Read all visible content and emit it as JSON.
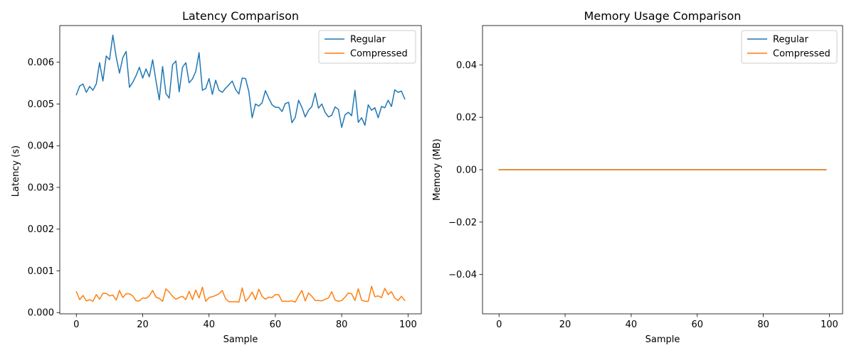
{
  "chart_data": [
    {
      "type": "line",
      "title": "Latency Comparison",
      "xlabel": "Sample",
      "ylabel": "Latency (s)",
      "xlim": [
        -5,
        104
      ],
      "ylim": [
        -3e-05,
        0.00688
      ],
      "xticks": [
        0,
        20,
        40,
        60,
        80,
        100
      ],
      "xtick_labels": [
        "0",
        "20",
        "40",
        "60",
        "80",
        "100"
      ],
      "yticks": [
        0,
        0.001,
        0.002,
        0.003,
        0.004,
        0.005,
        0.006
      ],
      "ytick_labels": [
        "0.000",
        "0.001",
        "0.002",
        "0.003",
        "0.004",
        "0.005",
        "0.006"
      ],
      "legend": "top-right",
      "grid": false,
      "x": [
        0,
        1,
        2,
        3,
        4,
        5,
        6,
        7,
        8,
        9,
        10,
        11,
        12,
        13,
        14,
        15,
        16,
        17,
        18,
        19,
        20,
        21,
        22,
        23,
        24,
        25,
        26,
        27,
        28,
        29,
        30,
        31,
        32,
        33,
        34,
        35,
        36,
        37,
        38,
        39,
        40,
        41,
        42,
        43,
        44,
        45,
        46,
        47,
        48,
        49,
        50,
        51,
        52,
        53,
        54,
        55,
        56,
        57,
        58,
        59,
        60,
        61,
        62,
        63,
        64,
        65,
        66,
        67,
        68,
        69,
        70,
        71,
        72,
        73,
        74,
        75,
        76,
        77,
        78,
        79,
        80,
        81,
        82,
        83,
        84,
        85,
        86,
        87,
        88,
        89,
        90,
        91,
        92,
        93,
        94,
        95,
        96,
        97,
        98,
        99
      ],
      "series": [
        {
          "name": "Regular",
          "color": "#1f77b4",
          "values": [
            0.00522,
            0.00543,
            0.00548,
            0.00528,
            0.00542,
            0.00533,
            0.00548,
            0.00599,
            0.00555,
            0.00615,
            0.00606,
            0.00665,
            0.00613,
            0.00574,
            0.00611,
            0.00626,
            0.0054,
            0.00552,
            0.00568,
            0.00588,
            0.00562,
            0.00584,
            0.00565,
            0.00606,
            0.00556,
            0.0051,
            0.0059,
            0.00525,
            0.00514,
            0.00594,
            0.00603,
            0.00529,
            0.00588,
            0.00599,
            0.00551,
            0.0056,
            0.00578,
            0.00623,
            0.00533,
            0.00537,
            0.00561,
            0.00523,
            0.00557,
            0.00533,
            0.00528,
            0.00538,
            0.00546,
            0.00555,
            0.00535,
            0.00524,
            0.00562,
            0.00561,
            0.0053,
            0.00467,
            0.005,
            0.00495,
            0.00503,
            0.00532,
            0.00514,
            0.00498,
            0.00492,
            0.00492,
            0.00482,
            0.00501,
            0.00504,
            0.00455,
            0.00468,
            0.00509,
            0.00492,
            0.00469,
            0.00485,
            0.00494,
            0.00526,
            0.0049,
            0.005,
            0.0048,
            0.00469,
            0.00473,
            0.00493,
            0.00487,
            0.00444,
            0.00474,
            0.0048,
            0.00472,
            0.00533,
            0.00456,
            0.00467,
            0.00449,
            0.00498,
            0.00485,
            0.00491,
            0.00467,
            0.00494,
            0.00491,
            0.00509,
            0.00494,
            0.00534,
            0.00528,
            0.00531,
            0.00512
          ]
        },
        {
          "name": "Compressed",
          "color": "#ff7f0e",
          "values": [
            0.0005,
            0.00031,
            0.00041,
            0.00028,
            0.00031,
            0.00027,
            0.00043,
            0.00032,
            0.00046,
            0.00046,
            0.0004,
            0.00042,
            0.0003,
            0.00053,
            0.00036,
            0.00045,
            0.00045,
            0.0004,
            0.00028,
            0.00028,
            0.00035,
            0.00034,
            0.0004,
            0.00053,
            0.00037,
            0.00034,
            0.00027,
            0.00057,
            0.00049,
            0.00039,
            0.00032,
            0.00036,
            0.00039,
            0.00031,
            0.00051,
            0.00031,
            0.00054,
            0.00035,
            0.00061,
            0.00027,
            0.00036,
            0.00038,
            0.00041,
            0.00045,
            0.00053,
            0.00033,
            0.00026,
            0.00026,
            0.00026,
            0.00025,
            0.00059,
            0.00027,
            0.00036,
            0.00049,
            0.00031,
            0.00056,
            0.00039,
            0.00032,
            0.00037,
            0.00036,
            0.00043,
            0.00043,
            0.00027,
            0.00027,
            0.00027,
            0.00028,
            0.00025,
            0.0004,
            0.00053,
            0.00028,
            0.00047,
            0.00039,
            0.00029,
            0.00029,
            0.00028,
            0.00032,
            0.00035,
            0.0005,
            0.0003,
            0.00027,
            0.00029,
            0.00037,
            0.00047,
            0.00045,
            0.00029,
            0.00057,
            0.0003,
            0.00027,
            0.00027,
            0.00063,
            0.00038,
            0.0004,
            0.00036,
            0.00058,
            0.00043,
            0.0005,
            0.00035,
            0.00029,
            0.00039,
            0.00029
          ]
        }
      ]
    },
    {
      "type": "line",
      "title": "Memory Usage Comparison",
      "xlabel": "Sample",
      "ylabel": "Memory (MB)",
      "xlim": [
        -5,
        104
      ],
      "ylim": [
        -0.055,
        0.055
      ],
      "xticks": [
        0,
        20,
        40,
        60,
        80,
        100
      ],
      "xtick_labels": [
        "0",
        "20",
        "40",
        "60",
        "80",
        "100"
      ],
      "yticks": [
        -0.04,
        -0.02,
        0,
        0.02,
        0.04
      ],
      "ytick_labels": [
        "−0.04",
        "−0.02",
        "0.00",
        "0.02",
        "0.04"
      ],
      "legend": "top-right",
      "grid": false,
      "x_start": 0,
      "x_end": 99,
      "series": [
        {
          "name": "Regular",
          "color": "#1f77b4",
          "value": 0
        },
        {
          "name": "Compressed",
          "color": "#ff7f0e",
          "value": 0
        }
      ]
    }
  ]
}
